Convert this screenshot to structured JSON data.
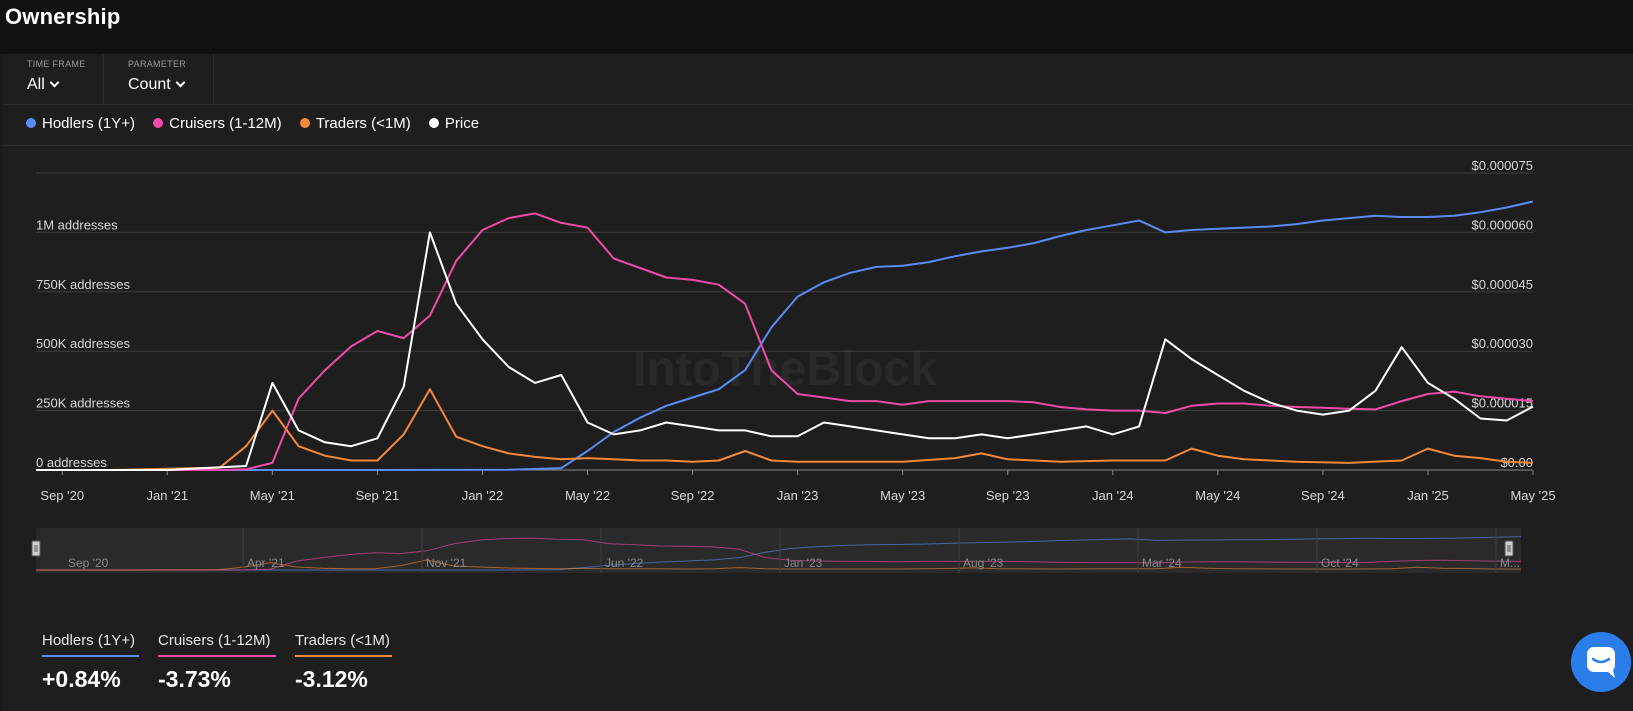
{
  "page": {
    "title": "Ownership"
  },
  "controls": {
    "time_frame_label": "TIME FRAME",
    "time_frame_value": "All",
    "parameter_label": "PARAMETER",
    "parameter_value": "Count"
  },
  "legend": [
    {
      "label": "Hodlers (1Y+)",
      "color": "#5b8cf6"
    },
    {
      "label": "Cruisers (1-12M)",
      "color": "#f04ba8"
    },
    {
      "label": "Traders (<1M)",
      "color": "#f5893a"
    },
    {
      "label": "Price",
      "color": "#ffffff"
    }
  ],
  "watermark": "IntoTheBlock",
  "chart_data": {
    "type": "line",
    "title": "Ownership",
    "x_ticks": [
      "Sep '20",
      "Jan '21",
      "May '21",
      "Sep '21",
      "Jan '22",
      "May '22",
      "Sep '22",
      "Jan '23",
      "May '23",
      "Sep '23",
      "Jan '24",
      "May '24",
      "Sep '24",
      "Jan '25",
      "May '25"
    ],
    "y_left": {
      "ticks": [
        "0 addresses",
        "250K addresses",
        "500K addresses",
        "750K addresses",
        "1M addresses"
      ],
      "range": [
        0,
        1250000
      ]
    },
    "y_right": {
      "ticks": [
        "$0.00",
        "$0.000015",
        "$0.000030",
        "$0.000045",
        "$0.000060",
        "$0.000075"
      ],
      "range": [
        0,
        7.5e-05
      ]
    },
    "x_range": [
      "2020-08",
      "2025-05"
    ],
    "grid": true,
    "legend_position": "top-left",
    "series": [
      {
        "name": "Hodlers (1Y+)",
        "axis": "left",
        "color": "#5b8cf6",
        "points": [
          [
            "2020-08",
            0
          ],
          [
            "2021-09",
            0
          ],
          [
            "2022-02",
            1000
          ],
          [
            "2022-04",
            8000
          ],
          [
            "2022-05",
            80000
          ],
          [
            "2022-06",
            160000
          ],
          [
            "2022-07",
            220000
          ],
          [
            "2022-08",
            270000
          ],
          [
            "2022-09",
            305000
          ],
          [
            "2022-10",
            340000
          ],
          [
            "2022-11",
            420000
          ],
          [
            "2022-12",
            600000
          ],
          [
            "2023-01",
            730000
          ],
          [
            "2023-02",
            790000
          ],
          [
            "2023-03",
            830000
          ],
          [
            "2023-04",
            855000
          ],
          [
            "2023-05",
            860000
          ],
          [
            "2023-06",
            875000
          ],
          [
            "2023-07",
            900000
          ],
          [
            "2023-08",
            920000
          ],
          [
            "2023-09",
            935000
          ],
          [
            "2023-10",
            955000
          ],
          [
            "2023-11",
            985000
          ],
          [
            "2023-12",
            1010000
          ],
          [
            "2024-01",
            1030000
          ],
          [
            "2024-02",
            1050000
          ],
          [
            "2024-03",
            1000000
          ],
          [
            "2024-04",
            1010000
          ],
          [
            "2024-05",
            1015000
          ],
          [
            "2024-06",
            1020000
          ],
          [
            "2024-07",
            1025000
          ],
          [
            "2024-08",
            1035000
          ],
          [
            "2024-09",
            1050000
          ],
          [
            "2024-10",
            1060000
          ],
          [
            "2024-11",
            1070000
          ],
          [
            "2024-12",
            1065000
          ],
          [
            "2025-01",
            1065000
          ],
          [
            "2025-02",
            1070000
          ],
          [
            "2025-03",
            1085000
          ],
          [
            "2025-04",
            1105000
          ],
          [
            "2025-05",
            1130000
          ]
        ]
      },
      {
        "name": "Cruisers (1-12M)",
        "axis": "left",
        "color": "#f04ba8",
        "points": [
          [
            "2020-08",
            0
          ],
          [
            "2021-03",
            0
          ],
          [
            "2021-04",
            3000
          ],
          [
            "2021-05",
            30000
          ],
          [
            "2021-06",
            300000
          ],
          [
            "2021-07",
            420000
          ],
          [
            "2021-08",
            520000
          ],
          [
            "2021-09",
            585000
          ],
          [
            "2021-10",
            555000
          ],
          [
            "2021-11",
            650000
          ],
          [
            "2021-12",
            880000
          ],
          [
            "2022-01",
            1010000
          ],
          [
            "2022-02",
            1060000
          ],
          [
            "2022-03",
            1080000
          ],
          [
            "2022-04",
            1040000
          ],
          [
            "2022-05",
            1020000
          ],
          [
            "2022-06",
            890000
          ],
          [
            "2022-07",
            850000
          ],
          [
            "2022-08",
            810000
          ],
          [
            "2022-09",
            800000
          ],
          [
            "2022-10",
            780000
          ],
          [
            "2022-11",
            700000
          ],
          [
            "2022-12",
            420000
          ],
          [
            "2023-01",
            320000
          ],
          [
            "2023-02",
            305000
          ],
          [
            "2023-03",
            290000
          ],
          [
            "2023-04",
            290000
          ],
          [
            "2023-05",
            275000
          ],
          [
            "2023-06",
            290000
          ],
          [
            "2023-07",
            290000
          ],
          [
            "2023-08",
            290000
          ],
          [
            "2023-09",
            290000
          ],
          [
            "2023-10",
            285000
          ],
          [
            "2023-11",
            265000
          ],
          [
            "2023-12",
            255000
          ],
          [
            "2024-01",
            250000
          ],
          [
            "2024-02",
            250000
          ],
          [
            "2024-03",
            240000
          ],
          [
            "2024-04",
            270000
          ],
          [
            "2024-05",
            280000
          ],
          [
            "2024-06",
            280000
          ],
          [
            "2024-07",
            270000
          ],
          [
            "2024-08",
            265000
          ],
          [
            "2024-09",
            262000
          ],
          [
            "2024-10",
            258000
          ],
          [
            "2024-11",
            255000
          ],
          [
            "2024-12",
            290000
          ],
          [
            "2025-01",
            320000
          ],
          [
            "2025-02",
            330000
          ],
          [
            "2025-03",
            310000
          ],
          [
            "2025-04",
            300000
          ],
          [
            "2025-05",
            290000
          ]
        ]
      },
      {
        "name": "Traders (<1M)",
        "axis": "left",
        "color": "#f5893a",
        "points": [
          [
            "2020-08",
            0
          ],
          [
            "2020-11",
            0
          ],
          [
            "2021-01",
            5000
          ],
          [
            "2021-03",
            10000
          ],
          [
            "2021-04",
            100000
          ],
          [
            "2021-05",
            250000
          ],
          [
            "2021-06",
            100000
          ],
          [
            "2021-07",
            60000
          ],
          [
            "2021-08",
            40000
          ],
          [
            "2021-09",
            40000
          ],
          [
            "2021-10",
            150000
          ],
          [
            "2021-11",
            340000
          ],
          [
            "2021-12",
            140000
          ],
          [
            "2022-01",
            100000
          ],
          [
            "2022-02",
            70000
          ],
          [
            "2022-03",
            55000
          ],
          [
            "2022-04",
            45000
          ],
          [
            "2022-05",
            50000
          ],
          [
            "2022-06",
            45000
          ],
          [
            "2022-07",
            40000
          ],
          [
            "2022-08",
            40000
          ],
          [
            "2022-09",
            35000
          ],
          [
            "2022-10",
            40000
          ],
          [
            "2022-11",
            80000
          ],
          [
            "2022-12",
            40000
          ],
          [
            "2023-01",
            35000
          ],
          [
            "2023-03",
            35000
          ],
          [
            "2023-05",
            35000
          ],
          [
            "2023-07",
            50000
          ],
          [
            "2023-08",
            70000
          ],
          [
            "2023-09",
            45000
          ],
          [
            "2023-11",
            35000
          ],
          [
            "2024-01",
            40000
          ],
          [
            "2024-03",
            40000
          ],
          [
            "2024-04",
            90000
          ],
          [
            "2024-05",
            60000
          ],
          [
            "2024-06",
            45000
          ],
          [
            "2024-08",
            35000
          ],
          [
            "2024-10",
            30000
          ],
          [
            "2024-12",
            40000
          ],
          [
            "2025-01",
            90000
          ],
          [
            "2025-02",
            60000
          ],
          [
            "2025-03",
            50000
          ],
          [
            "2025-04",
            35000
          ],
          [
            "2025-05",
            30000
          ]
        ]
      },
      {
        "name": "Price",
        "axis": "right",
        "color": "#ffffff",
        "points": [
          [
            "2020-08",
            0
          ],
          [
            "2021-01",
            0
          ],
          [
            "2021-04",
            1000
          ],
          [
            "2021-05",
            22000
          ],
          [
            "2021-06",
            10000
          ],
          [
            "2021-07",
            7000
          ],
          [
            "2021-08",
            6000
          ],
          [
            "2021-09",
            8000
          ],
          [
            "2021-10",
            21000
          ],
          [
            "2021-11",
            60000
          ],
          [
            "2021-12",
            42000
          ],
          [
            "2022-01",
            33000
          ],
          [
            "2022-02",
            26000
          ],
          [
            "2022-03",
            22000
          ],
          [
            "2022-04",
            24000
          ],
          [
            "2022-05",
            12000
          ],
          [
            "2022-06",
            9000
          ],
          [
            "2022-07",
            10000
          ],
          [
            "2022-08",
            12000
          ],
          [
            "2022-09",
            11000
          ],
          [
            "2022-10",
            10000
          ],
          [
            "2022-11",
            10000
          ],
          [
            "2022-12",
            8500
          ],
          [
            "2023-01",
            8500
          ],
          [
            "2023-02",
            12000
          ],
          [
            "2023-03",
            11000
          ],
          [
            "2023-04",
            10000
          ],
          [
            "2023-05",
            9000
          ],
          [
            "2023-06",
            8000
          ],
          [
            "2023-07",
            8000
          ],
          [
            "2023-08",
            9000
          ],
          [
            "2023-09",
            8000
          ],
          [
            "2023-10",
            9000
          ],
          [
            "2023-11",
            10000
          ],
          [
            "2023-12",
            11000
          ],
          [
            "2024-01",
            9000
          ],
          [
            "2024-02",
            11000
          ],
          [
            "2024-03",
            33000
          ],
          [
            "2024-04",
            28000
          ],
          [
            "2024-05",
            24000
          ],
          [
            "2024-06",
            20000
          ],
          [
            "2024-07",
            17000
          ],
          [
            "2024-08",
            15000
          ],
          [
            "2024-09",
            14000
          ],
          [
            "2024-10",
            15000
          ],
          [
            "2024-11",
            20000
          ],
          [
            "2024-12",
            31000
          ],
          [
            "2025-01",
            22000
          ],
          [
            "2025-02",
            18000
          ],
          [
            "2025-03",
            13000
          ],
          [
            "2025-04",
            12500
          ],
          [
            "2025-05",
            16000
          ]
        ]
      }
    ],
    "navigator": {
      "labels": [
        "Sep '20",
        "Apr '21",
        "Nov '21",
        "Jun '22",
        "Jan '23",
        "Aug '23",
        "Mar '24",
        "Oct '24",
        "M..."
      ]
    }
  },
  "stats": [
    {
      "label": "Hodlers (1Y+)",
      "value": "+0.84%",
      "color": "#5b8cf6"
    },
    {
      "label": "Cruisers (1-12M)",
      "value": "-3.73%",
      "color": "#f04ba8"
    },
    {
      "label": "Traders (<1M)",
      "value": "-3.12%",
      "color": "#f5893a"
    }
  ],
  "chat": {
    "icon": "chat-icon"
  }
}
